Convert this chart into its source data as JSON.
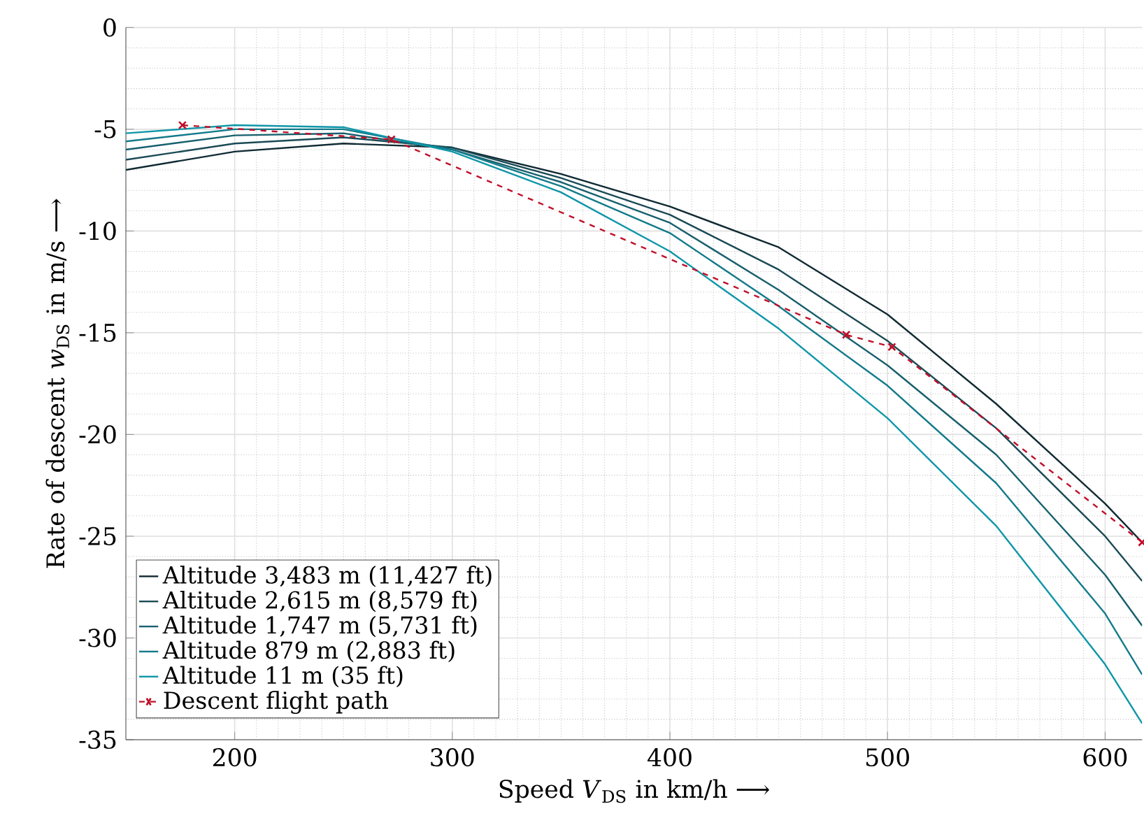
{
  "chart_data": {
    "type": "line",
    "xlabel": "Speed *V*$_{DS}$ in km/h ⟶",
    "ylabel": "Rate of descent *w*$_{DS}$ in m/s ⟶",
    "x": [
      150,
      200,
      250,
      300,
      350,
      400,
      450,
      500,
      550,
      600,
      617
    ],
    "series": [
      {
        "name": "Altitude 3,483 m (11,427 ft)",
        "color": "#102a33",
        "values": [
          -7.0,
          -6.1,
          -5.7,
          -5.9,
          -7.2,
          -8.8,
          -10.8,
          -14.1,
          -18.5,
          -23.4,
          -25.3
        ]
      },
      {
        "name": "Altitude 2,615 m (8,579 ft)",
        "color": "#1a4a55",
        "values": [
          -6.5,
          -5.7,
          -5.4,
          -5.9,
          -7.4,
          -9.2,
          -11.9,
          -15.4,
          -19.7,
          -25.0,
          -27.2
        ]
      },
      {
        "name": "Altitude 1,747 m (5,731 ft)",
        "color": "#17606d",
        "values": [
          -6.0,
          -5.3,
          -5.2,
          -6.0,
          -7.6,
          -9.6,
          -12.9,
          -16.6,
          -21.0,
          -26.9,
          -29.4
        ]
      },
      {
        "name": "Altitude 879 m (2,883 ft)",
        "color": "#137a8a",
        "values": [
          -5.6,
          -5.0,
          -5.0,
          -6.0,
          -7.8,
          -10.1,
          -13.7,
          -17.6,
          -22.4,
          -28.8,
          -31.8
        ]
      },
      {
        "name": "Altitude 11 m (35 ft)",
        "color": "#0f96a8",
        "values": [
          -5.2,
          -4.8,
          -4.9,
          -6.1,
          -8.1,
          -11.0,
          -14.8,
          -19.2,
          -24.5,
          -31.3,
          -34.2
        ]
      },
      {
        "name": "Descent flight path",
        "color": "#c0102a",
        "type": "line",
        "marker": "cross",
        "line_style": "dashed",
        "x": [
          176,
          272,
          481,
          502,
          617
        ],
        "values": [
          -4.8,
          -5.5,
          -15.1,
          -15.7,
          -25.3
        ]
      }
    ],
    "xlim": [
      150,
      617
    ],
    "xticks": [
      200,
      300,
      400,
      500,
      600
    ],
    "ylim": [
      -35,
      0
    ],
    "yticks": [
      -35,
      -30,
      -25,
      -20,
      -15,
      -10,
      -5,
      0
    ],
    "grid": true,
    "legend": "bottom left"
  }
}
